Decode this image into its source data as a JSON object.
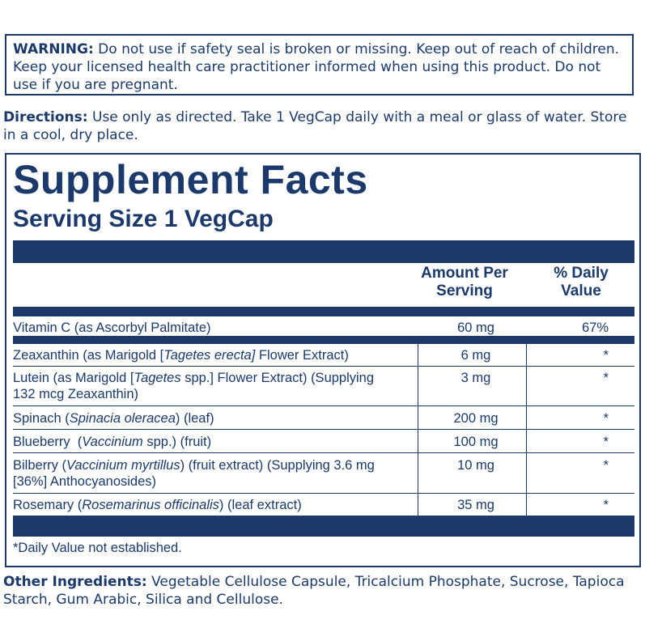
{
  "warning": {
    "label": "WARNING:",
    "text": " Do not use if safety seal is broken or missing. Keep out of reach of children. Keep your licensed health care practitioner informed when using this product. Do not use if you are pregnant."
  },
  "directions": {
    "label": "Directions:",
    "text": " Use only as directed. Take 1 VegCap daily with a meal or glass of water. Store in a cool, dry place."
  },
  "facts": {
    "title": "Supplement Facts",
    "serving_size": "Serving Size 1 VegCap",
    "col_amount_line1": "Amount Per",
    "col_amount_line2": "Serving",
    "col_dv_line1": "% Daily",
    "col_dv_line2": "Value",
    "rows": [
      {
        "name": "Vitamin C (as Ascorbyl Palmitate)",
        "amount": "60 mg",
        "dv": "67%"
      },
      {
        "name_pre": "Zeaxanthin (as Marigold [",
        "name_it": "Tagetes erecta]",
        "name_post": " Flower Extract)",
        "amount": "6 mg",
        "dv": "*"
      },
      {
        "name_pre": "Lutein (as Marigold [",
        "name_it": "Tagetes",
        "name_post": " spp.] Flower Extract) (Supplying",
        "name_line2": "132 mcg Zeaxanthin)",
        "amount": "3 mg",
        "dv": "*"
      },
      {
        "name_pre": "Spinach (",
        "name_it": "Spinacia oleracea",
        "name_post": ") (leaf)",
        "amount": "200 mg",
        "dv": "*"
      },
      {
        "name_pre": "Blueberry  (",
        "name_it": "Vaccinium",
        "name_post": " spp.) (fruit)",
        "amount": "100 mg",
        "dv": "*"
      },
      {
        "name_pre": "Bilberry (",
        "name_it": "Vaccinium myrtillus",
        "name_post": ") (fruit extract) (Supplying 3.6 mg",
        "name_line2": "[36%] Anthocyanosides)",
        "amount": "10 mg",
        "dv": "*"
      },
      {
        "name_pre": "Rosemary (",
        "name_it": "Rosemarinus officinalis",
        "name_post": ") (leaf extract)",
        "amount": "35 mg",
        "dv": "*"
      }
    ],
    "footnote": "*Daily Value not established."
  },
  "other": {
    "label": "Other Ingredients:",
    "text": " Vegetable Cellulose Capsule, Tricalcium Phosphate, Sucrose, Tapioca Starch, Gum Arabic, Silica and Cellulose."
  }
}
